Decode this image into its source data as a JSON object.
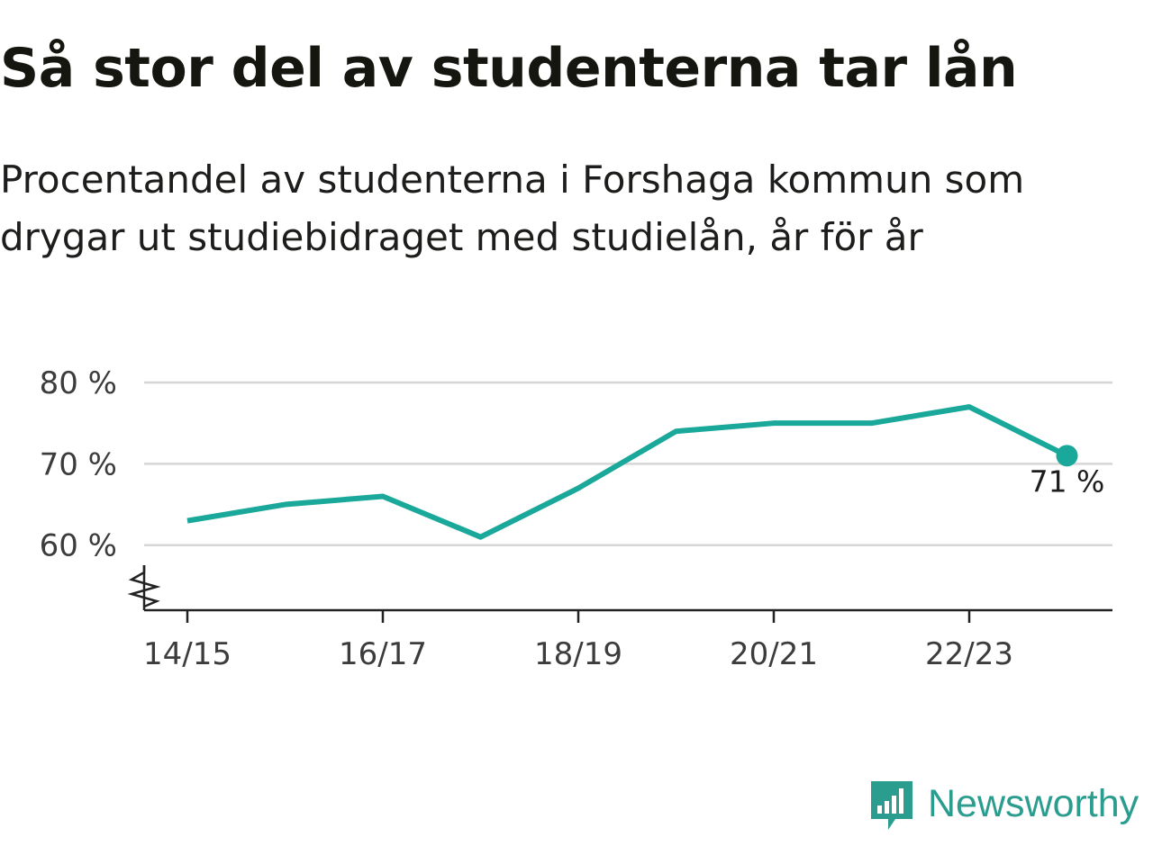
{
  "title": "Så stor del av studenterna tar lån",
  "subtitle_line1": "Procentandel av studenterna i Forshaga kommun som",
  "subtitle_line2": "drygar ut studiebidraget med studielån, år för år",
  "brand": {
    "name": "Newsworthy",
    "color": "#2a9d8f",
    "icon": "bar-chart-speech-bubble-icon"
  },
  "colors": {
    "line": "#1aa89a",
    "grid": "#d6d6d6",
    "axis": "#222222"
  },
  "chart_data": {
    "type": "line",
    "x": [
      "14/15",
      "15/16",
      "16/17",
      "17/18",
      "18/19",
      "19/20",
      "20/21",
      "21/22",
      "22/23",
      "23/24"
    ],
    "y": [
      63,
      65,
      66,
      61,
      67,
      74,
      75,
      75,
      77,
      71
    ],
    "x_tick_labels": [
      "14/15",
      "16/17",
      "18/19",
      "20/21",
      "22/23"
    ],
    "y_ticks": [
      60,
      70,
      80
    ],
    "y_tick_labels": [
      "60 %",
      "70 %",
      "80 %"
    ],
    "ylim": [
      52,
      80
    ],
    "y_axis_break": true,
    "grid": true,
    "last_value_label": "71 %"
  }
}
